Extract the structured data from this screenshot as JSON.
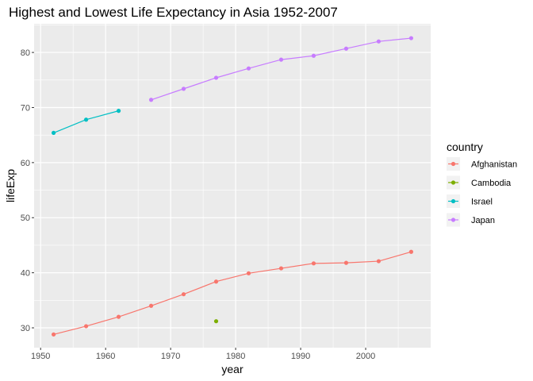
{
  "chart_data": {
    "type": "line",
    "title": "Highest and Lowest Life Expectancy in Asia 1952-2007",
    "xlabel": "year",
    "ylabel": "lifeExp",
    "xlim": [
      1949,
      2010
    ],
    "ylim": [
      26.4,
      85.2
    ],
    "x_ticks": [
      1950,
      1960,
      1970,
      1980,
      1990,
      2000
    ],
    "y_ticks": [
      30,
      40,
      50,
      60,
      70,
      80
    ],
    "grid": true,
    "legend_title": "country",
    "legend_position": "right",
    "series": [
      {
        "name": "Afghanistan",
        "color": "#F8766D",
        "points": [
          [
            1952,
            28.8
          ],
          [
            1957,
            30.3
          ],
          [
            1962,
            32.0
          ],
          [
            1967,
            34.0
          ],
          [
            1972,
            36.1
          ],
          [
            1977,
            38.4
          ],
          [
            1982,
            39.9
          ],
          [
            1987,
            40.8
          ],
          [
            1992,
            41.7
          ],
          [
            1997,
            41.8
          ],
          [
            2002,
            42.1
          ],
          [
            2007,
            43.8
          ]
        ]
      },
      {
        "name": "Cambodia",
        "color": "#7CAE00",
        "points": [
          [
            1977,
            31.2
          ]
        ]
      },
      {
        "name": "Israel",
        "color": "#00BFC4",
        "points": [
          [
            1952,
            65.4
          ],
          [
            1957,
            67.8
          ],
          [
            1962,
            69.4
          ]
        ]
      },
      {
        "name": "Japan",
        "color": "#C77CFF",
        "points": [
          [
            1967,
            71.4
          ],
          [
            1972,
            73.4
          ],
          [
            1977,
            75.4
          ],
          [
            1982,
            77.1
          ],
          [
            1987,
            78.7
          ],
          [
            1992,
            79.4
          ],
          [
            1997,
            80.7
          ],
          [
            2002,
            82.0
          ],
          [
            2007,
            82.6
          ]
        ]
      }
    ]
  }
}
